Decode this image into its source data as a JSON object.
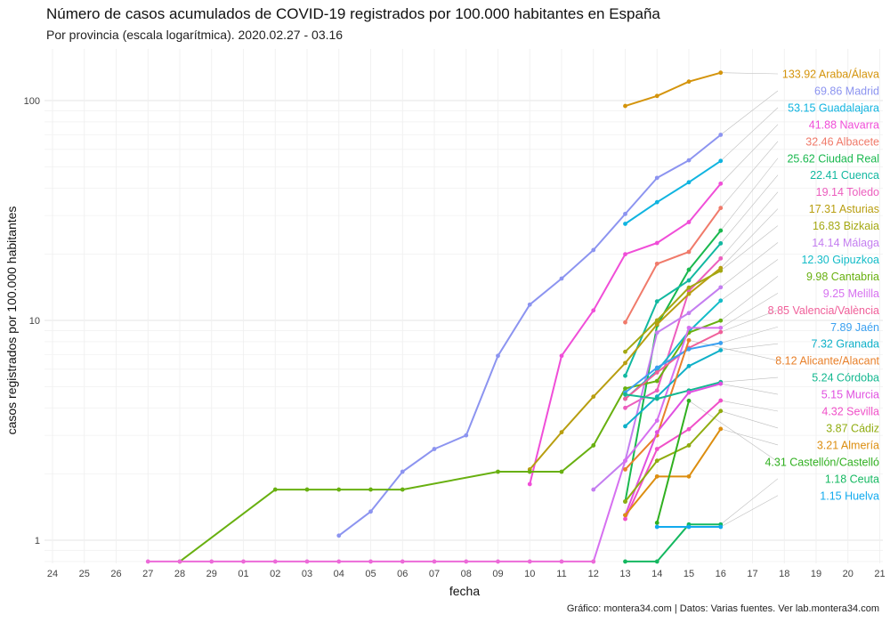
{
  "chart_data": {
    "type": "line",
    "title": "Número de casos acumulados de COVID-19 registrados por 100.000 habitantes en España",
    "subtitle": "Por provincia (escala logarítmica). 2020.02.27 - 03.16",
    "xlabel": "fecha",
    "ylabel": "casos registrados por 100.000 habitantes",
    "caption": "Gráfico: montera34.com | Datos: Varias fuentes. Ver lab.montera34.com",
    "yscale": "log",
    "ylim": [
      0.8,
      140
    ],
    "yticks": [
      1,
      10,
      100
    ],
    "ytick_labels": [
      "1",
      "10",
      "100"
    ],
    "x": [
      "2020-02-24",
      "2020-02-25",
      "2020-02-26",
      "2020-02-27",
      "2020-02-28",
      "2020-02-29",
      "2020-03-01",
      "2020-03-02",
      "2020-03-03",
      "2020-03-04",
      "2020-03-05",
      "2020-03-06",
      "2020-03-07",
      "2020-03-08",
      "2020-03-09",
      "2020-03-10",
      "2020-03-11",
      "2020-03-12",
      "2020-03-13",
      "2020-03-14",
      "2020-03-15",
      "2020-03-16",
      "2020-03-17",
      "2020-03-18",
      "2020-03-19",
      "2020-03-20",
      "2020-03-21"
    ],
    "xtick_labels": [
      "24",
      "25",
      "26",
      "27",
      "28",
      "29",
      "01",
      "02",
      "03",
      "04",
      "05",
      "06",
      "07",
      "08",
      "09",
      "10",
      "11",
      "12",
      "13",
      "14",
      "15",
      "16",
      "17",
      "18",
      "19",
      "20",
      "21"
    ],
    "grid": true,
    "legend": "direct labels at line ends",
    "series": [
      {
        "name": "Araba/Álava",
        "label": "133.92 Araba/Álava",
        "color": "#d4940c",
        "points": [
          [
            "2020-03-13",
            94.5
          ],
          [
            "2020-03-14",
            105
          ],
          [
            "2020-03-15",
            122
          ],
          [
            "2020-03-16",
            133.92
          ]
        ]
      },
      {
        "name": "Madrid",
        "label": "69.86 Madrid",
        "color": "#8c94f0",
        "points": [
          [
            "2020-03-04",
            1.05
          ],
          [
            "2020-03-05",
            1.35
          ],
          [
            "2020-03-06",
            2.05
          ],
          [
            "2020-03-07",
            2.6
          ],
          [
            "2020-03-08",
            3.0
          ],
          [
            "2020-03-09",
            6.9
          ],
          [
            "2020-03-10",
            11.8
          ],
          [
            "2020-03-11",
            15.5
          ],
          [
            "2020-03-12",
            20.9
          ],
          [
            "2020-03-13",
            30.5
          ],
          [
            "2020-03-14",
            44.5
          ],
          [
            "2020-03-15",
            53.5
          ],
          [
            "2020-03-16",
            69.86
          ]
        ]
      },
      {
        "name": "Guadalajara",
        "label": "53.15 Guadalajara",
        "color": "#10b4e0",
        "points": [
          [
            "2020-03-13",
            27.5
          ],
          [
            "2020-03-14",
            34.5
          ],
          [
            "2020-03-15",
            42.5
          ],
          [
            "2020-03-16",
            53.15
          ]
        ]
      },
      {
        "name": "Navarra",
        "label": "41.88 Navarra",
        "color": "#f04ed8",
        "points": [
          [
            "2020-03-10",
            1.8
          ],
          [
            "2020-03-11",
            6.9
          ],
          [
            "2020-03-12",
            11.1
          ],
          [
            "2020-03-13",
            20.0
          ],
          [
            "2020-03-14",
            22.5
          ],
          [
            "2020-03-15",
            28.0
          ],
          [
            "2020-03-16",
            41.88
          ]
        ]
      },
      {
        "name": "Albacete",
        "label": "32.46 Albacete",
        "color": "#f07a6a",
        "points": [
          [
            "2020-03-13",
            9.8
          ],
          [
            "2020-03-14",
            18.1
          ],
          [
            "2020-03-15",
            20.5
          ],
          [
            "2020-03-16",
            32.46
          ]
        ]
      },
      {
        "name": "Ciudad Real",
        "label": "25.62 Ciudad Real",
        "color": "#19b84e",
        "points": [
          [
            "2020-03-13",
            1.5
          ],
          [
            "2020-03-14",
            9.5
          ],
          [
            "2020-03-15",
            17.0
          ],
          [
            "2020-03-16",
            25.62
          ]
        ]
      },
      {
        "name": "Cuenca",
        "label": "22.41 Cuenca",
        "color": "#12b8a0",
        "points": [
          [
            "2020-03-13",
            5.6
          ],
          [
            "2020-03-14",
            12.2
          ],
          [
            "2020-03-15",
            15.2
          ],
          [
            "2020-03-16",
            22.41
          ]
        ]
      },
      {
        "name": "Toledo",
        "label": "19.14 Toledo",
        "color": "#ec5ebe",
        "points": [
          [
            "2020-03-13",
            4.0
          ],
          [
            "2020-03-14",
            4.8
          ],
          [
            "2020-03-15",
            13.6
          ],
          [
            "2020-03-16",
            19.14
          ]
        ]
      },
      {
        "name": "Asturias",
        "label": "17.31 Asturias",
        "color": "#b89e10",
        "points": [
          [
            "2020-03-10",
            2.1
          ],
          [
            "2020-03-11",
            3.1
          ],
          [
            "2020-03-12",
            4.5
          ],
          [
            "2020-03-13",
            6.4
          ],
          [
            "2020-03-14",
            9.6
          ],
          [
            "2020-03-15",
            13.2
          ],
          [
            "2020-03-16",
            17.31
          ]
        ]
      },
      {
        "name": "Bizkaia",
        "label": "16.83 Bizkaia",
        "color": "#a4a812",
        "points": [
          [
            "2020-03-13",
            7.2
          ],
          [
            "2020-03-14",
            10.0
          ],
          [
            "2020-03-15",
            14.1
          ],
          [
            "2020-03-16",
            16.83
          ]
        ]
      },
      {
        "name": "Málaga",
        "label": "14.14 Málaga",
        "color": "#c47ef0",
        "points": [
          [
            "2020-03-12",
            1.7
          ],
          [
            "2020-03-13",
            2.3
          ],
          [
            "2020-03-14",
            8.8
          ],
          [
            "2020-03-15",
            10.8
          ],
          [
            "2020-03-16",
            14.14
          ]
        ]
      },
      {
        "name": "Gipuzkoa",
        "label": "12.30 Gipuzkoa",
        "color": "#14bcc8",
        "points": [
          [
            "2020-03-13",
            4.4
          ],
          [
            "2020-03-14",
            5.9
          ],
          [
            "2020-03-15",
            8.9
          ],
          [
            "2020-03-16",
            12.3
          ]
        ]
      },
      {
        "name": "Cantabria",
        "label": "9.98 Cantabria",
        "color": "#68b010",
        "points": [
          [
            "2020-02-28",
            0.8
          ],
          [
            "2020-03-02",
            1.7
          ],
          [
            "2020-03-03",
            1.7
          ],
          [
            "2020-03-04",
            1.7
          ],
          [
            "2020-03-05",
            1.7
          ],
          [
            "2020-03-06",
            1.7
          ],
          [
            "2020-03-09",
            2.05
          ],
          [
            "2020-03-10",
            2.05
          ],
          [
            "2020-03-11",
            2.05
          ],
          [
            "2020-03-12",
            2.7
          ],
          [
            "2020-03-13",
            4.9
          ],
          [
            "2020-03-14",
            5.3
          ],
          [
            "2020-03-15",
            8.8
          ],
          [
            "2020-03-16",
            9.98
          ]
        ]
      },
      {
        "name": "Melilla",
        "label": "9.25 Melilla",
        "color": "#d670f0",
        "points": [
          [
            "2020-03-12",
            0.8
          ],
          [
            "2020-03-13",
            2.3
          ],
          [
            "2020-03-14",
            3.5
          ],
          [
            "2020-03-15",
            9.25
          ],
          [
            "2020-03-16",
            9.25
          ]
        ]
      },
      {
        "name": "Valencia/València",
        "label": "8.85 Valencia/València",
        "color": "#f0609a",
        "points": [
          [
            "2020-03-13",
            4.4
          ],
          [
            "2020-03-14",
            5.8
          ],
          [
            "2020-03-15",
            7.5
          ],
          [
            "2020-03-16",
            8.85
          ]
        ]
      },
      {
        "name": "Jaén",
        "label": "7.89 Jaén",
        "color": "#3aa0f0",
        "points": [
          [
            "2020-03-13",
            4.7
          ],
          [
            "2020-03-14",
            6.1
          ],
          [
            "2020-03-15",
            7.4
          ],
          [
            "2020-03-16",
            7.89
          ]
        ]
      },
      {
        "name": "Granada",
        "label": "7.32 Granada",
        "color": "#0fb0c8",
        "points": [
          [
            "2020-03-13",
            3.3
          ],
          [
            "2020-03-14",
            4.5
          ],
          [
            "2020-03-15",
            6.2
          ],
          [
            "2020-03-16",
            7.32
          ]
        ]
      },
      {
        "name": "Alicante/Alacant",
        "label": "8.12 Alicante/Alacant",
        "color": "#e8802a",
        "points": [
          [
            "2020-03-13",
            2.1
          ],
          [
            "2020-03-14",
            3.0
          ],
          [
            "2020-03-15",
            8.12
          ]
        ]
      },
      {
        "name": "Córdoba",
        "label": "5.24 Córdoba",
        "color": "#14b890",
        "points": [
          [
            "2020-03-13",
            4.6
          ],
          [
            "2020-03-14",
            4.4
          ],
          [
            "2020-03-15",
            4.8
          ],
          [
            "2020-03-16",
            5.24
          ]
        ]
      },
      {
        "name": "Murcia",
        "label": "5.15 Murcia",
        "color": "#e050e0",
        "points": [
          [
            "2020-03-13",
            1.3
          ],
          [
            "2020-03-14",
            3.1
          ],
          [
            "2020-03-15",
            4.7
          ],
          [
            "2020-03-16",
            5.15
          ]
        ]
      },
      {
        "name": "Sevilla",
        "label": "4.32 Sevilla",
        "color": "#f050c8",
        "points": [
          [
            "2020-03-13",
            1.25
          ],
          [
            "2020-03-14",
            2.6
          ],
          [
            "2020-03-15",
            3.2
          ],
          [
            "2020-03-16",
            4.32
          ]
        ]
      },
      {
        "name": "Cádiz",
        "label": "3.87 Cádiz",
        "color": "#90ac10",
        "points": [
          [
            "2020-03-13",
            1.5
          ],
          [
            "2020-03-14",
            2.3
          ],
          [
            "2020-03-15",
            2.7
          ],
          [
            "2020-03-16",
            3.87
          ]
        ]
      },
      {
        "name": "Almería",
        "label": "3.21 Almería",
        "color": "#dc8e10",
        "points": [
          [
            "2020-03-13",
            1.3
          ],
          [
            "2020-03-14",
            1.95
          ],
          [
            "2020-03-15",
            1.95
          ],
          [
            "2020-03-16",
            3.21
          ]
        ]
      },
      {
        "name": "Castellón/Castelló",
        "label": "4.31 Castellón/Castelló",
        "color": "#30b020",
        "points": [
          [
            "2020-03-14",
            1.2
          ],
          [
            "2020-03-15",
            4.31
          ]
        ]
      },
      {
        "name": "Ceuta",
        "label": "1.18 Ceuta",
        "color": "#14b860",
        "points": [
          [
            "2020-03-13",
            0.8
          ],
          [
            "2020-03-14",
            0.8
          ],
          [
            "2020-03-15",
            1.18
          ],
          [
            "2020-03-16",
            1.18
          ]
        ]
      },
      {
        "name": "Huelva",
        "label": "1.15 Huelva",
        "color": "#12aaee",
        "points": [
          [
            "2020-03-14",
            1.15
          ],
          [
            "2020-03-15",
            1.15
          ],
          [
            "2020-03-16",
            1.15
          ]
        ]
      },
      {
        "name": "",
        "label": "",
        "color": "#ec6ad8",
        "points": [
          [
            "2020-02-27",
            0.8
          ],
          [
            "2020-02-28",
            0.8
          ],
          [
            "2020-02-29",
            0.8
          ],
          [
            "2020-03-01",
            0.8
          ],
          [
            "2020-03-02",
            0.8
          ],
          [
            "2020-03-03",
            0.8
          ],
          [
            "2020-03-04",
            0.8
          ],
          [
            "2020-03-05",
            0.8
          ],
          [
            "2020-03-06",
            0.8
          ],
          [
            "2020-03-07",
            0.8
          ],
          [
            "2020-03-08",
            0.8
          ],
          [
            "2020-03-09",
            0.8
          ],
          [
            "2020-03-10",
            0.8
          ],
          [
            "2020-03-11",
            0.8
          ],
          [
            "2020-03-12",
            0.8
          ]
        ]
      }
    ]
  }
}
